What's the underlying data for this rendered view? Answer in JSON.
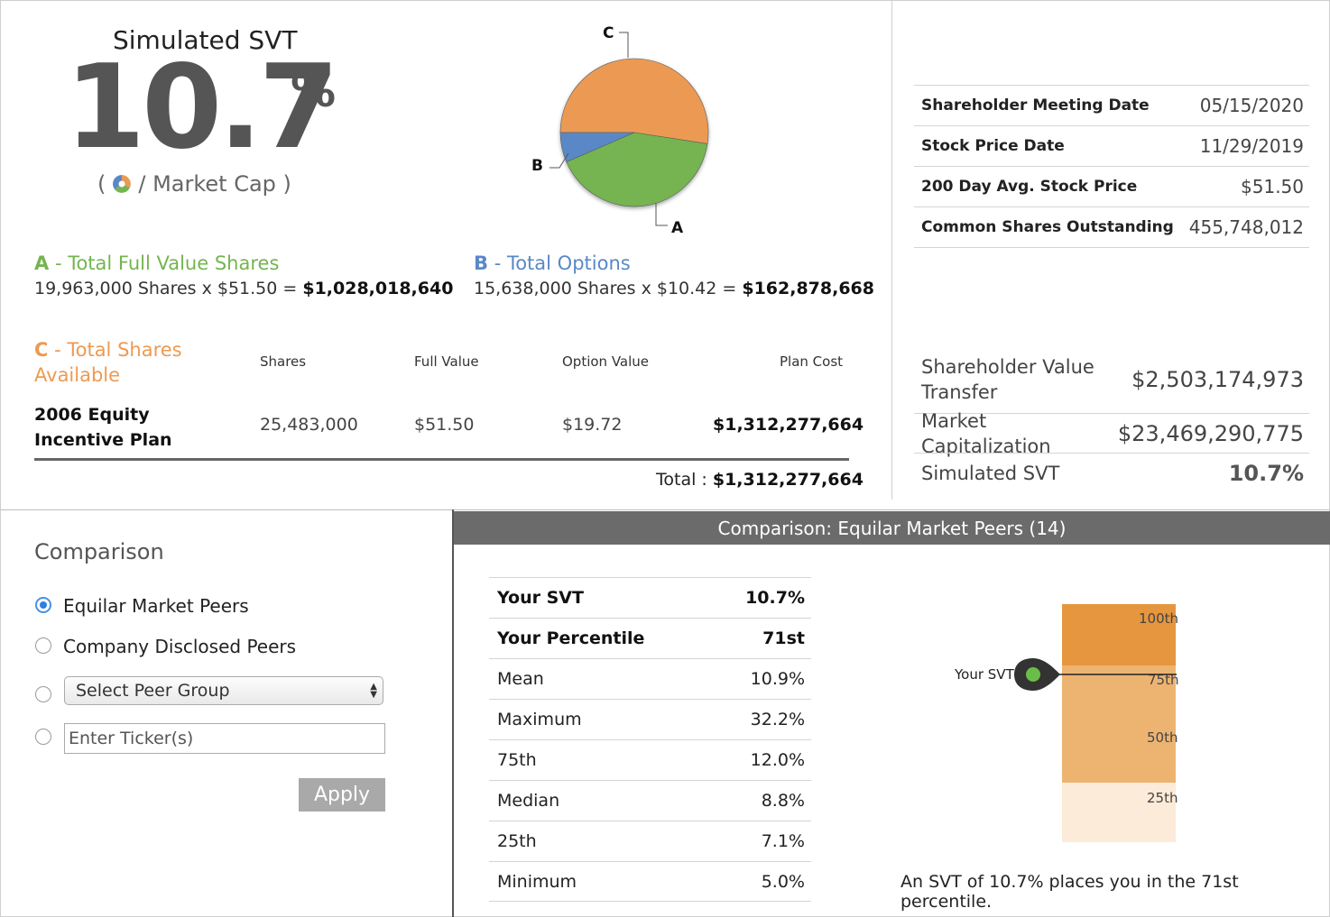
{
  "svt": {
    "title": "Simulated SVT",
    "value": "10.7",
    "unit": "%",
    "open_paren": "(",
    "mcap_label": "/ Market Cap )"
  },
  "colors": {
    "a": "#75b451",
    "b": "#5a88c6",
    "c": "#ec9a53"
  },
  "pie": {
    "labels": {
      "a": "A",
      "b": "B",
      "c": "C"
    },
    "chart_data": {
      "type": "pie",
      "slices": [
        {
          "label": "A",
          "value": 1028018640
        },
        {
          "label": "B",
          "value": 162878668
        },
        {
          "label": "C",
          "value": 1312277664
        }
      ]
    }
  },
  "a": {
    "letter": "A",
    "title": " - Total Full Value Shares",
    "calc": "19,963,000 Shares x $51.50 = ",
    "amount": "$1,028,018,640"
  },
  "b": {
    "letter": "B",
    "title": " - Total Options",
    "calc": "15,638,000 Shares x $10.42 = ",
    "amount": "$162,878,668"
  },
  "c": {
    "letter": "C",
    "title": " - Total Shares Available",
    "headers": [
      "Shares",
      "Full Value",
      "Option Value",
      "Plan Cost"
    ],
    "plan": {
      "name": "2006 Equity Incentive Plan",
      "shares": "25,483,000",
      "full_value": "$51.50",
      "option_value": "$19.72",
      "plan_cost": "$1,312,277,664"
    },
    "total_label": "Total : ",
    "total_value": "$1,312,277,664"
  },
  "info": [
    {
      "label": "Shareholder Meeting Date",
      "value": "05/15/2020"
    },
    {
      "label": "Stock Price Date",
      "value": "11/29/2019"
    },
    {
      "label": "200 Day Avg. Stock Price",
      "value": "$51.50"
    },
    {
      "label": "Common Shares Outstanding",
      "value": "455,748,012"
    }
  ],
  "summary": [
    {
      "label": "Shareholder Value Transfer",
      "value": "$2,503,174,973"
    },
    {
      "label": "Market Capitalization",
      "value": "$23,469,290,775"
    },
    {
      "label": "Simulated SVT",
      "value": "10.7%"
    }
  ],
  "comparison": {
    "title": "Comparison",
    "options": {
      "equilar": "Equilar Market Peers",
      "disclosed": "Company Disclosed Peers"
    },
    "selected": "equilar",
    "select_value": "Select Peer Group",
    "ticker_placeholder": "Enter Ticker(s)",
    "apply_label": "Apply"
  },
  "panel_title": "Comparison: Equilar Market Peers (14)",
  "stats": [
    {
      "label": "Your SVT",
      "value": "10.7%"
    },
    {
      "label": "Your Percentile",
      "value": "71st"
    },
    {
      "label": "Mean",
      "value": "10.9%"
    },
    {
      "label": "Maximum",
      "value": "32.2%"
    },
    {
      "label": "75th",
      "value": "12.0%"
    },
    {
      "label": "Median",
      "value": "8.8%"
    },
    {
      "label": "25th",
      "value": "7.1%"
    },
    {
      "label": "Minimum",
      "value": "5.0%"
    }
  ],
  "percentile_chart": {
    "labels": [
      "100th",
      "75th",
      "50th",
      "25th"
    ],
    "marker_label": "Your SVT",
    "marker_percentile": 71,
    "colors": {
      "top": "#e6963e",
      "mid": "#edb471",
      "low": "#fbebd8"
    }
  },
  "sentence": "An SVT of 10.7% places you in the 71st percentile."
}
